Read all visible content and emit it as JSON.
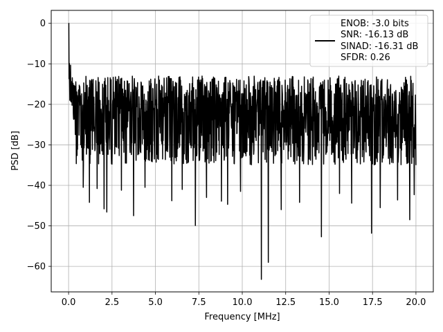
{
  "chart_data": {
    "type": "line",
    "title": "",
    "xlabel": "Frequency [MHz]",
    "ylabel": "PSD [dB]",
    "xlim": [
      -1.0,
      21.0
    ],
    "ylim": [
      -66.3,
      3.2
    ],
    "x_ticks": [
      0.0,
      2.5,
      5.0,
      7.5,
      10.0,
      12.5,
      15.0,
      17.5,
      20.0
    ],
    "x_tick_labels": [
      "0.0",
      "2.5",
      "5.0",
      "7.5",
      "10.0",
      "12.5",
      "15.0",
      "17.5",
      "20.0"
    ],
    "y_ticks": [
      0,
      -10,
      -20,
      -30,
      -40,
      -50,
      -60
    ],
    "y_tick_labels": [
      "0",
      "−10",
      "−20",
      "−30",
      "−40",
      "−50",
      "−60"
    ],
    "grid": true,
    "legend_position": "top-right",
    "legend_entries": [
      "ENOB: -3.0 bits",
      "SNR: -16.13 dB",
      "SINAD: -16.31 dB",
      "SFDR: 0.26"
    ],
    "line_color": "#000000",
    "series": [
      {
        "x_start": 0.0,
        "x_end": 20.0,
        "description_values": {
          "peak_near_zero": 0,
          "noise_floor_typical_top": -14,
          "noise_floor_typical_bottom": -34
        },
        "deep_nulls": [
          {
            "x": 0.85,
            "y": -40.5
          },
          {
            "x": 1.2,
            "y": -44.2
          },
          {
            "x": 1.65,
            "y": -40.8
          },
          {
            "x": 2.05,
            "y": -45.8
          },
          {
            "x": 2.2,
            "y": -46.6
          },
          {
            "x": 3.05,
            "y": -41.2
          },
          {
            "x": 3.75,
            "y": -47.5
          },
          {
            "x": 4.4,
            "y": -40.5
          },
          {
            "x": 5.95,
            "y": -43.8
          },
          {
            "x": 6.55,
            "y": -41.0
          },
          {
            "x": 7.3,
            "y": -49.9
          },
          {
            "x": 7.95,
            "y": -43.0
          },
          {
            "x": 8.8,
            "y": -43.9
          },
          {
            "x": 9.15,
            "y": -44.7
          },
          {
            "x": 9.9,
            "y": -41.5
          },
          {
            "x": 11.1,
            "y": -63.2
          },
          {
            "x": 11.5,
            "y": -59.0
          },
          {
            "x": 12.25,
            "y": -46.0
          },
          {
            "x": 13.3,
            "y": -44.2
          },
          {
            "x": 14.55,
            "y": -52.7
          },
          {
            "x": 15.6,
            "y": -42.0
          },
          {
            "x": 16.3,
            "y": -44.4
          },
          {
            "x": 17.45,
            "y": -51.8
          },
          {
            "x": 17.95,
            "y": -45.5
          },
          {
            "x": 18.95,
            "y": -43.6
          },
          {
            "x": 19.65,
            "y": -48.5
          },
          {
            "x": 19.9,
            "y": -42.3
          }
        ]
      }
    ]
  }
}
